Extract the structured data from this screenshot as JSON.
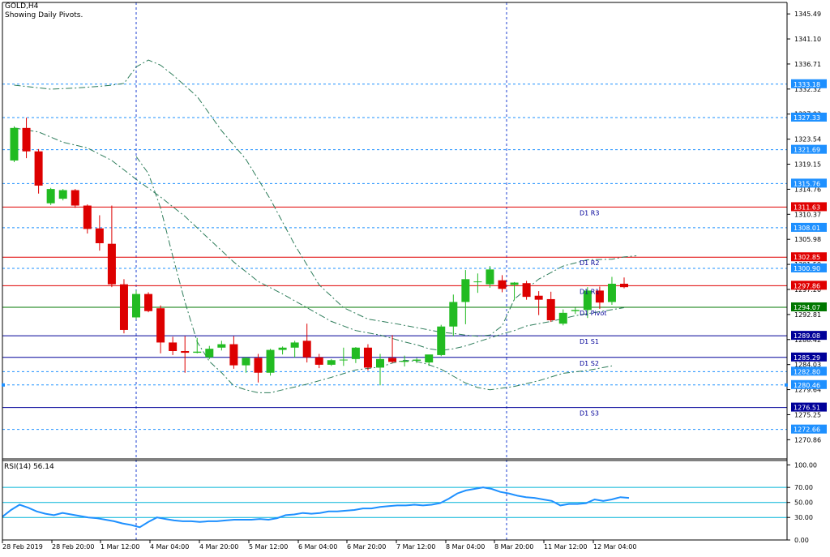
{
  "header": {
    "symbol": "GOLD,H4",
    "indicator": "Showing Daily Pivots."
  },
  "rsi": {
    "label": "RSI(14) 56.14"
  },
  "colors": {
    "background": "#ffffff",
    "bull_candle": "#22bb22",
    "bear_candle": "#dd0000",
    "grid": "#1e90ff",
    "bollinger": "#2e7d5b",
    "pivot_resistance": "#e00000",
    "pivot_central": "#007700",
    "pivot_support": "#000099",
    "rsi_line": "#1e90ff",
    "axis": "#000000"
  },
  "chart_data": [
    {
      "type": "candlestick",
      "title": "GOLD,H4",
      "subtitle": "Showing Daily Pivots.",
      "ylim": [
        1267.5,
        1347.5
      ],
      "y_ticks": [
        "1345.49",
        "1341.10",
        "1336.71",
        "1332.32",
        "1327.93",
        "1323.54",
        "1319.15",
        "1314.76",
        "1310.37",
        "1305.98",
        "1301.59",
        "1297.20",
        "1292.81",
        "1288.42",
        "1284.03",
        "1279.64",
        "1275.25",
        "1270.86"
      ],
      "x_tick_labels": [
        "28 Feb 2019",
        "28 Feb 20:00",
        "1 Mar 12:00",
        "4 Mar 04:00",
        "4 Mar 20:00",
        "5 Mar 12:00",
        "6 Mar 04:00",
        "6 Mar 20:00",
        "7 Mar 12:00",
        "8 Mar 04:00",
        "8 Mar 20:00",
        "11 Mar 12:00",
        "12 Mar 04:00"
      ],
      "period_separators": [
        "1 Mar 12:00",
        "8 Mar 20:00"
      ],
      "grid_levels": [
        1333.18,
        1327.33,
        1321.69,
        1315.76,
        1308.01,
        1300.9,
        1282.8,
        1280.46,
        1272.66
      ],
      "price_boxes": [
        {
          "value": "1333.18",
          "color": "#1e90ff"
        },
        {
          "value": "1327.33",
          "color": "#1e90ff"
        },
        {
          "value": "1321.69",
          "color": "#1e90ff"
        },
        {
          "value": "1315.76",
          "color": "#1e90ff"
        },
        {
          "value": "1311.63",
          "color": "#e00000"
        },
        {
          "value": "1308.01",
          "color": "#1e90ff"
        },
        {
          "value": "1302.85",
          "color": "#e00000"
        },
        {
          "value": "1300.90",
          "color": "#1e90ff"
        },
        {
          "value": "1297.86",
          "color": "#e00000"
        },
        {
          "value": "1294.07",
          "color": "#007700"
        },
        {
          "value": "1289.08",
          "color": "#000099"
        },
        {
          "value": "1285.29",
          "color": "#000099"
        },
        {
          "value": "1282.80",
          "color": "#1e90ff"
        },
        {
          "value": "1280.46",
          "color": "#1e90ff"
        },
        {
          "value": "1276.51",
          "color": "#000099"
        },
        {
          "value": "1272.66",
          "color": "#1e90ff"
        }
      ],
      "pivots": [
        {
          "label": "D1 R3",
          "value": 1311.63,
          "kind": "resistance"
        },
        {
          "label": "D1 R2",
          "value": 1302.85,
          "kind": "resistance"
        },
        {
          "label": "D1 R1",
          "value": 1297.86,
          "kind": "resistance"
        },
        {
          "label": "D1 Pivot",
          "value": 1294.07,
          "kind": "pivot"
        },
        {
          "label": "D1 S1",
          "value": 1289.08,
          "kind": "support"
        },
        {
          "label": "D1 S2",
          "value": 1285.29,
          "kind": "support"
        },
        {
          "label": "D1 S3",
          "value": 1276.51,
          "kind": "support"
        }
      ],
      "candles": [
        {
          "o": 1319.8,
          "h": 1325.8,
          "l": 1319.5,
          "c": 1325.5
        },
        {
          "o": 1325.5,
          "h": 1327.3,
          "l": 1320.2,
          "c": 1321.4
        },
        {
          "o": 1321.4,
          "h": 1321.8,
          "l": 1314.0,
          "c": 1315.4
        },
        {
          "o": 1312.3,
          "h": 1315.0,
          "l": 1312.0,
          "c": 1314.8
        },
        {
          "o": 1313.1,
          "h": 1314.8,
          "l": 1312.8,
          "c": 1314.6
        },
        {
          "o": 1314.6,
          "h": 1314.8,
          "l": 1311.5,
          "c": 1311.9
        },
        {
          "o": 1311.9,
          "h": 1312.1,
          "l": 1307.0,
          "c": 1307.8
        },
        {
          "o": 1307.9,
          "h": 1310.2,
          "l": 1304.0,
          "c": 1305.3
        },
        {
          "o": 1305.2,
          "h": 1311.9,
          "l": 1297.6,
          "c": 1298.1
        },
        {
          "o": 1298.1,
          "h": 1299.0,
          "l": 1289.5,
          "c": 1290.1
        },
        {
          "o": 1292.3,
          "h": 1297.0,
          "l": 1292.0,
          "c": 1296.4
        },
        {
          "o": 1296.4,
          "h": 1296.7,
          "l": 1293.2,
          "c": 1293.4
        },
        {
          "o": 1293.9,
          "h": 1294.4,
          "l": 1286.0,
          "c": 1287.9
        },
        {
          "o": 1287.9,
          "h": 1288.9,
          "l": 1285.7,
          "c": 1286.4
        },
        {
          "o": 1286.4,
          "h": 1289.0,
          "l": 1282.6,
          "c": 1286.1
        },
        {
          "o": 1286.1,
          "h": 1288.7,
          "l": 1286.0,
          "c": 1286.3
        },
        {
          "o": 1285.3,
          "h": 1287.3,
          "l": 1285.0,
          "c": 1286.8
        },
        {
          "o": 1287.0,
          "h": 1288.2,
          "l": 1286.5,
          "c": 1287.6
        },
        {
          "o": 1287.6,
          "h": 1289.0,
          "l": 1283.3,
          "c": 1283.9
        },
        {
          "o": 1283.9,
          "h": 1285.4,
          "l": 1282.6,
          "c": 1285.2
        },
        {
          "o": 1285.2,
          "h": 1285.9,
          "l": 1280.9,
          "c": 1282.6
        },
        {
          "o": 1282.6,
          "h": 1286.8,
          "l": 1282.1,
          "c": 1286.6
        },
        {
          "o": 1286.6,
          "h": 1287.2,
          "l": 1285.8,
          "c": 1287.0
        },
        {
          "o": 1287.0,
          "h": 1288.2,
          "l": 1285.3,
          "c": 1287.9
        },
        {
          "o": 1288.2,
          "h": 1291.2,
          "l": 1284.4,
          "c": 1285.3
        },
        {
          "o": 1285.3,
          "h": 1285.9,
          "l": 1283.4,
          "c": 1284.0
        },
        {
          "o": 1284.0,
          "h": 1285.0,
          "l": 1283.8,
          "c": 1284.8
        },
        {
          "o": 1284.9,
          "h": 1287.0,
          "l": 1283.8,
          "c": 1284.9
        },
        {
          "o": 1285.0,
          "h": 1287.1,
          "l": 1284.3,
          "c": 1287.0
        },
        {
          "o": 1287.0,
          "h": 1287.6,
          "l": 1283.0,
          "c": 1283.5
        },
        {
          "o": 1283.5,
          "h": 1285.9,
          "l": 1280.4,
          "c": 1285.0
        },
        {
          "o": 1285.2,
          "h": 1289.2,
          "l": 1284.3,
          "c": 1284.5
        },
        {
          "o": 1284.5,
          "h": 1285.6,
          "l": 1283.7,
          "c": 1284.7
        },
        {
          "o": 1284.7,
          "h": 1285.2,
          "l": 1284.3,
          "c": 1284.9
        },
        {
          "o": 1284.4,
          "h": 1285.4,
          "l": 1283.8,
          "c": 1285.8
        },
        {
          "o": 1285.7,
          "h": 1291.0,
          "l": 1285.5,
          "c": 1290.7
        },
        {
          "o": 1290.7,
          "h": 1296.3,
          "l": 1289.0,
          "c": 1295.0
        },
        {
          "o": 1295.0,
          "h": 1300.6,
          "l": 1291.1,
          "c": 1299.0
        },
        {
          "o": 1298.5,
          "h": 1300.0,
          "l": 1296.6,
          "c": 1298.6
        },
        {
          "o": 1298.1,
          "h": 1301.3,
          "l": 1297.5,
          "c": 1300.7
        },
        {
          "o": 1298.8,
          "h": 1299.7,
          "l": 1296.7,
          "c": 1297.3
        },
        {
          "o": 1298.0,
          "h": 1298.5,
          "l": 1295.3,
          "c": 1298.4
        },
        {
          "o": 1298.3,
          "h": 1298.7,
          "l": 1295.4,
          "c": 1295.9
        },
        {
          "o": 1296.1,
          "h": 1296.9,
          "l": 1292.7,
          "c": 1295.4
        },
        {
          "o": 1295.5,
          "h": 1296.8,
          "l": 1291.5,
          "c": 1291.8
        },
        {
          "o": 1291.2,
          "h": 1293.7,
          "l": 1290.9,
          "c": 1293.1
        },
        {
          "o": 1293.4,
          "h": 1294.0,
          "l": 1292.9,
          "c": 1293.6
        },
        {
          "o": 1293.6,
          "h": 1297.6,
          "l": 1292.2,
          "c": 1297.0
        },
        {
          "o": 1297.0,
          "h": 1297.7,
          "l": 1293.8,
          "c": 1294.9
        },
        {
          "o": 1295.0,
          "h": 1299.4,
          "l": 1294.5,
          "c": 1298.2
        },
        {
          "o": 1298.2,
          "h": 1299.3,
          "l": 1297.4,
          "c": 1297.6
        }
      ],
      "bollinger_upper": [
        1333.0,
        1332.3,
        1332.5,
        1332.8,
        1333.0,
        1333.3,
        1336.2,
        1337.4,
        1336.5,
        1334.8,
        1331.0,
        1328.0,
        1325.0,
        1320.0,
        1313.0,
        1305.0,
        1298.0,
        1294.0,
        1292.0,
        1291.3,
        1290.5,
        1289.7,
        1289.5,
        1289.2,
        1289.0,
        1289.2,
        1290.8,
        1295.5,
        1299.0,
        1301.3,
        1302.4,
        1302.5,
        1302.9,
        1303.1
      ],
      "bollinger_upper_idx": [
        0,
        3,
        5,
        7,
        8,
        9,
        10,
        11,
        12,
        13,
        15,
        16,
        17,
        19,
        21,
        23,
        25,
        27,
        29,
        31,
        33,
        35,
        36,
        37,
        38,
        39,
        40,
        41,
        43,
        45,
        47,
        49,
        50,
        51
      ],
      "bollinger_middle": [
        1325.5,
        1324.8,
        1323.0,
        1322.0,
        1319.8,
        1316.5,
        1313.4,
        1310.0,
        1306.0,
        1302.0,
        1298.6,
        1296.4,
        1294.0,
        1291.6,
        1290.0,
        1289.2,
        1288.6,
        1288.0,
        1287.5,
        1286.8,
        1286.5,
        1286.8,
        1287.3,
        1288.0,
        1288.7,
        1289.4,
        1290.0,
        1290.8,
        1291.6,
        1292.6,
        1293.3,
        1294.0
      ],
      "bollinger_middle_idx": [
        0,
        2,
        4,
        6,
        8,
        10,
        12,
        14,
        16,
        18,
        20,
        22,
        24,
        26,
        28,
        30,
        31,
        32,
        33,
        34,
        35,
        36,
        37,
        38,
        39,
        40,
        41,
        42,
        44,
        46,
        48,
        50
      ],
      "bollinger_lower": [
        1320.5,
        1317.5,
        1311.5,
        1303.0,
        1295.0,
        1288.0,
        1284.6,
        1282.6,
        1280.3,
        1279.6,
        1279.1,
        1279.1,
        1279.6,
        1280.6,
        1281.8,
        1283.1,
        1283.6,
        1284.3,
        1284.8,
        1284.6,
        1284.0,
        1283.2,
        1282.0,
        1280.8,
        1280.0,
        1279.6,
        1280.2,
        1281.2,
        1282.5,
        1283.0,
        1283.8
      ],
      "bollinger_lower_idx": [
        10,
        11,
        12,
        13,
        14,
        15,
        16,
        17,
        18,
        19,
        20,
        21,
        22,
        24,
        26,
        28,
        30,
        31,
        32,
        33,
        34,
        35,
        36,
        37,
        38,
        39,
        41,
        43,
        45,
        47,
        49
      ]
    },
    {
      "type": "line",
      "title": "RSI(14) 56.14",
      "ylim": [
        0,
        100
      ],
      "y_ticks": [
        "100.00",
        "70.00",
        "50.00",
        "30.00",
        "0.00"
      ],
      "levels": [
        70,
        50,
        30
      ],
      "series": [
        {
          "name": "RSI(14)",
          "values": [
            31,
            40,
            47,
            43,
            38,
            35,
            33,
            36,
            34,
            32,
            30,
            29,
            27,
            25,
            22,
            20,
            17,
            24,
            30,
            28,
            26,
            25,
            25,
            24,
            25,
            25,
            26,
            27,
            27,
            27,
            28,
            27,
            29,
            33,
            34,
            36,
            35,
            36,
            38,
            38,
            39,
            40,
            42,
            42,
            44,
            45,
            46,
            46,
            47,
            46,
            47,
            49,
            55,
            62,
            66,
            68,
            70,
            68,
            64,
            62,
            59,
            57,
            56,
            54,
            52,
            46,
            48,
            48,
            49,
            54,
            52,
            54,
            57,
            56
          ]
        }
      ]
    }
  ]
}
